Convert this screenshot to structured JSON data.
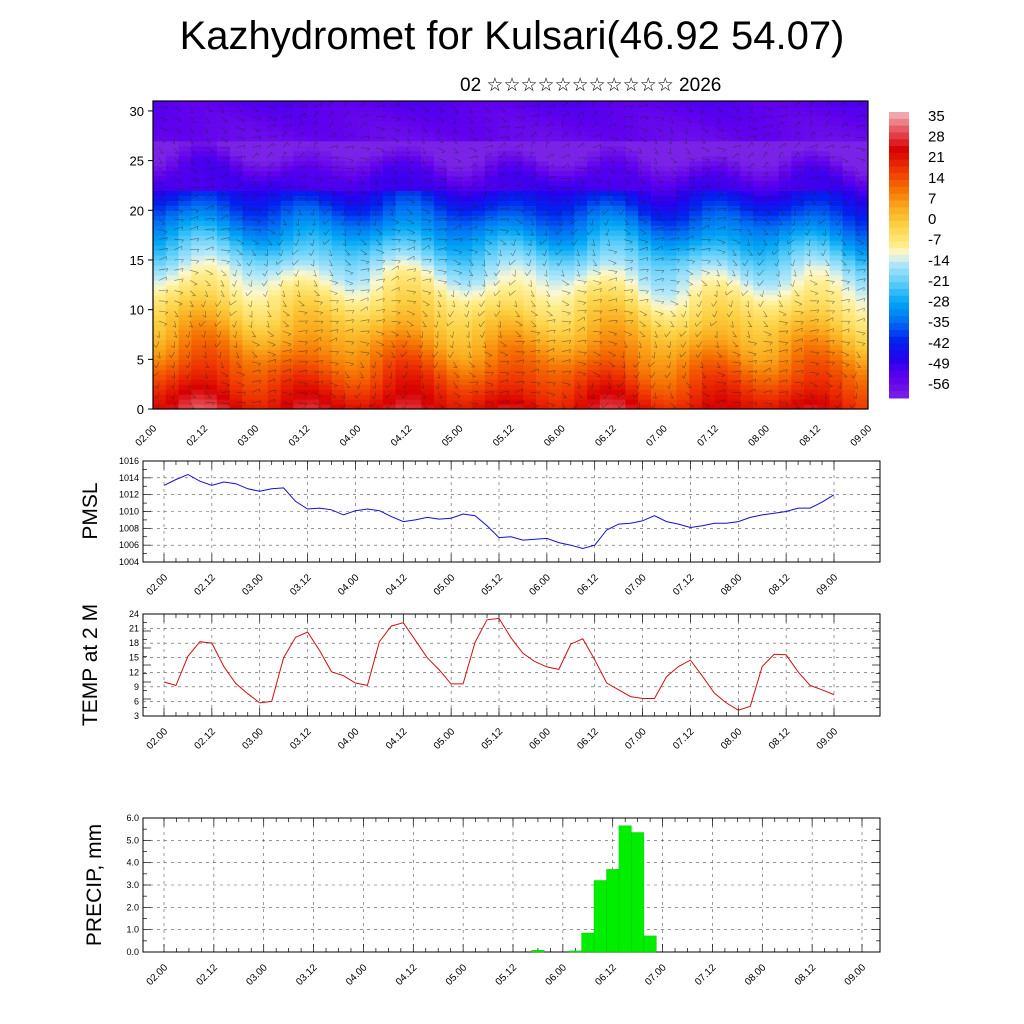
{
  "title": "Kazhydromet for Kulsari(46.92 54.07)",
  "subtitle": "02 ☆☆☆☆☆☆☆☆☆☆☆ 2026",
  "colors": {
    "pmsl_line": "#1010d0",
    "temp_line": "#d01010",
    "precip_bar": "#00ee00",
    "grid": "#555555"
  },
  "chart_data": [
    {
      "type": "heatmap",
      "name": "vertical cross-section temperature",
      "x_tick_labels": [
        "02.00",
        "02.12",
        "03.00",
        "03.12",
        "04.00",
        "04.12",
        "05.00",
        "05.12",
        "06.00",
        "06.12",
        "07.00",
        "07.12",
        "08.00",
        "08.12",
        "09.00"
      ],
      "y_ticks": [
        0,
        5,
        10,
        15,
        20,
        25,
        30
      ],
      "ylim": [
        0,
        31
      ],
      "colorbar_labels": [
        "35",
        "28",
        "21",
        "14",
        "7",
        "0",
        "-7",
        "-14",
        "-21",
        "-28",
        "-35",
        "-42",
        "-49",
        "-56"
      ],
      "colorbar_range": [
        -63,
        42
      ]
    },
    {
      "type": "line",
      "ylabel": "PMSL",
      "ylim": [
        1004,
        1016
      ],
      "y_ticks": [
        1004,
        1006,
        1008,
        1010,
        1012,
        1014,
        1016
      ],
      "x_tick_labels": [
        "02.00",
        "02.12",
        "03.00",
        "03.12",
        "04.00",
        "04.12",
        "05.00",
        "05.12",
        "06.00",
        "06.12",
        "07.00",
        "07.12",
        "08.00",
        "08.12",
        "09.00"
      ],
      "x_step_hours": 3,
      "values": [
        1013.1,
        1013.8,
        1014.4,
        1013.6,
        1013.1,
        1013.5,
        1013.3,
        1012.7,
        1012.4,
        1012.7,
        1012.8,
        1011.2,
        1010.3,
        1010.4,
        1010.2,
        1009.6,
        1010.1,
        1010.3,
        1010.1,
        1009.4,
        1008.8,
        1009.0,
        1009.3,
        1009.1,
        1009.2,
        1009.7,
        1009.5,
        1008.3,
        1006.9,
        1007.0,
        1006.6,
        1006.7,
        1006.8,
        1006.3,
        1006.0,
        1005.6,
        1006.0,
        1007.8,
        1008.5,
        1008.6,
        1008.9,
        1009.5,
        1008.8,
        1008.5,
        1008.1,
        1008.3,
        1008.6,
        1008.6,
        1008.8,
        1009.3,
        1009.6,
        1009.8,
        1010.0,
        1010.4,
        1010.4,
        1011.1,
        1012.0
      ]
    },
    {
      "type": "line",
      "ylabel": "TEMP at 2 M",
      "ylim": [
        3,
        24
      ],
      "y_ticks": [
        3,
        6,
        9,
        12,
        15,
        18,
        21,
        24
      ],
      "x_tick_labels": [
        "02.00",
        "02.12",
        "03.00",
        "03.12",
        "04.00",
        "04.12",
        "05.00",
        "05.12",
        "06.00",
        "06.12",
        "07.00",
        "07.12",
        "08.00",
        "08.12",
        "09.00"
      ],
      "x_step_hours": 3,
      "values": [
        10.0,
        9.3,
        15.3,
        18.3,
        18.0,
        13.2,
        9.7,
        7.6,
        5.7,
        6.0,
        15.0,
        19.2,
        20.3,
        16.5,
        12.1,
        11.3,
        9.8,
        9.3,
        18.3,
        21.5,
        22.2,
        18.6,
        15.0,
        12.5,
        9.6,
        9.6,
        18.2,
        22.8,
        23.1,
        19.1,
        15.9,
        14.2,
        13.1,
        12.6,
        17.8,
        18.9,
        14.6,
        9.8,
        8.4,
        7.0,
        6.6,
        6.6,
        11.1,
        13.2,
        14.5,
        11.2,
        7.7,
        5.7,
        4.2,
        5.0,
        13.2,
        15.7,
        15.6,
        12.1,
        9.3,
        8.4,
        7.4
      ]
    },
    {
      "type": "bar",
      "ylabel": "PRECIP, mm",
      "ylim": [
        0,
        6.0
      ],
      "y_tick_labels": [
        "0.0",
        "1.0",
        "2.0",
        "3.0",
        "4.0",
        "5.0",
        "6.0"
      ],
      "x_tick_labels": [
        "02.00",
        "02.12",
        "03.00",
        "03.12",
        "04.00",
        "04.12",
        "05.00",
        "05.12",
        "06.00",
        "06.12",
        "07.00",
        "07.12",
        "08.00",
        "08.12",
        "09.00"
      ],
      "x_step_hours": 3,
      "values": [
        0,
        0,
        0,
        0,
        0,
        0,
        0,
        0,
        0,
        0,
        0,
        0,
        0,
        0,
        0,
        0,
        0,
        0,
        0,
        0,
        0,
        0,
        0,
        0,
        0,
        0,
        0,
        0,
        0,
        0,
        0.08,
        0,
        0,
        0.05,
        0.85,
        3.2,
        3.7,
        5.65,
        5.35,
        0.72,
        0,
        0,
        0,
        0,
        0,
        0,
        0,
        0,
        0,
        0,
        0,
        0,
        0,
        0,
        0,
        0,
        0
      ]
    }
  ]
}
